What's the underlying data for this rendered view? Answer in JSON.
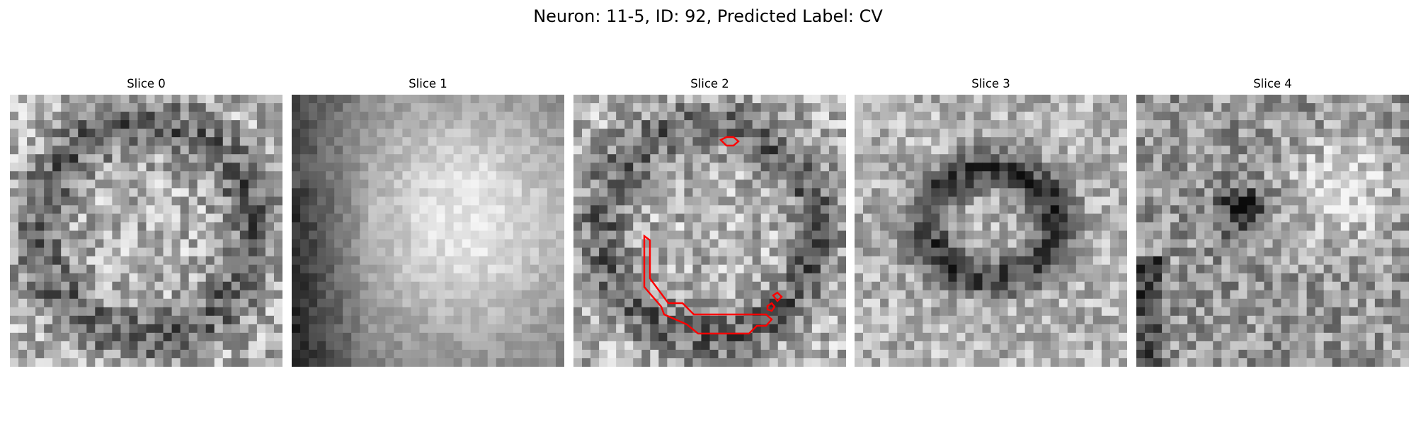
{
  "figure": {
    "title": "Neuron: 11-5, ID: 92, Predicted Label: CV"
  },
  "panels": [
    {
      "title": "Slice 0",
      "pattern": "noisy-ring",
      "has_contour": false
    },
    {
      "title": "Slice 1",
      "pattern": "bright-blob-dark-left",
      "has_contour": false
    },
    {
      "title": "Slice 2",
      "pattern": "noisy-ring",
      "has_contour": true
    },
    {
      "title": "Slice 3",
      "pattern": "dark-ring-center",
      "has_contour": false
    },
    {
      "title": "Slice 4",
      "pattern": "bright-right-dark-spot",
      "has_contour": false
    }
  ],
  "colors": {
    "contour": "#ff0000",
    "colormap": "gray"
  }
}
